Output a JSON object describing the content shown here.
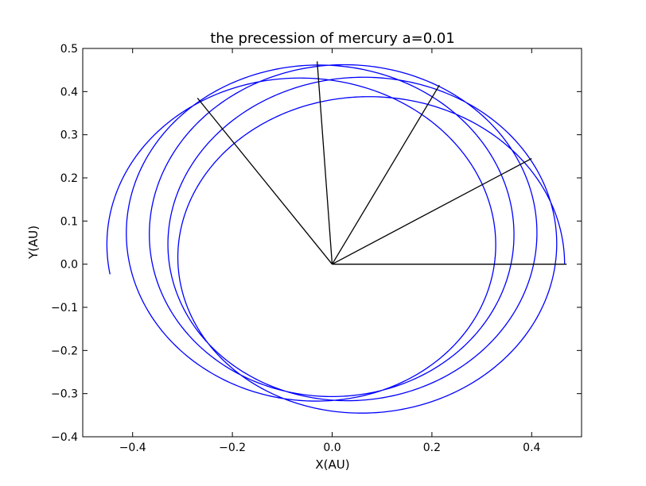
{
  "chart_data": {
    "type": "line",
    "title": "the precession of mercury a=0.01",
    "xlabel": "X(AU)",
    "ylabel": "Y(AU)",
    "xlim": [
      -0.5,
      0.5
    ],
    "ylim": [
      -0.4,
      0.5
    ],
    "xticks": [
      -0.4,
      -0.2,
      0.0,
      0.2,
      0.4
    ],
    "xtick_labels": [
      "−0.4",
      "−0.2",
      "0.0",
      "0.2",
      "0.4"
    ],
    "yticks": [
      -0.4,
      -0.3,
      -0.2,
      -0.1,
      0.0,
      0.1,
      0.2,
      0.3,
      0.4,
      0.5
    ],
    "ytick_labels": [
      "−0.4",
      "−0.3",
      "−0.2",
      "−0.1",
      "0.0",
      "0.1",
      "0.2",
      "0.3",
      "0.4",
      "0.5"
    ],
    "grid": false,
    "legend": "none",
    "orbit": {
      "color": "#0000ff",
      "semi_latus_rectum": 0.37,
      "eccentricity": 0.206,
      "initial_perihelion_angle_deg": 180,
      "precession_deg_per_orbit": 33,
      "theta_start_deg": 0,
      "theta_end_deg": 1623
    },
    "perihelion_lines": {
      "color": "#000000",
      "segments": [
        {
          "x": [
            0.0,
            0.47
          ],
          "y": [
            0.0,
            0.0
          ]
        },
        {
          "x": [
            0.0,
            0.4
          ],
          "y": [
            0.0,
            0.245
          ]
        },
        {
          "x": [
            0.0,
            0.215
          ],
          "y": [
            0.0,
            0.415
          ]
        },
        {
          "x": [
            0.0,
            -0.03
          ],
          "y": [
            0.0,
            0.47
          ]
        },
        {
          "x": [
            0.0,
            -0.27
          ],
          "y": [
            0.0,
            0.385
          ]
        }
      ]
    }
  }
}
